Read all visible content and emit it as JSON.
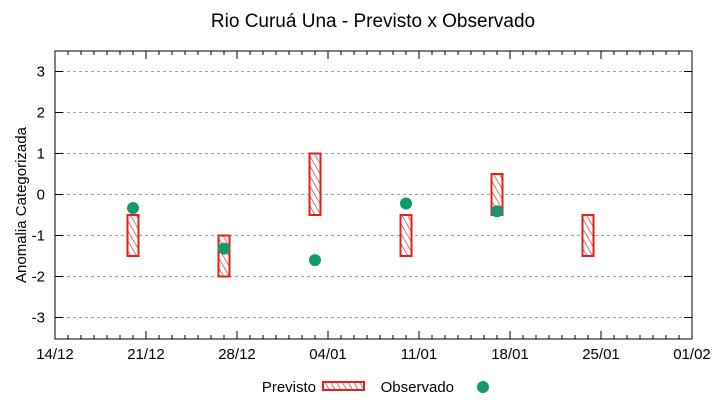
{
  "chart_data": {
    "type": "range-bar+scatter",
    "title": "Rio Curuá Una - Previsto x Observado",
    "xlabel": "",
    "ylabel": "Anomalia Categorizada",
    "ylim": [
      -3.5,
      3.5
    ],
    "y_ticks": [
      3,
      2,
      1,
      0,
      -1,
      -2,
      -3
    ],
    "x_tick_labels": [
      "14/12",
      "21/12",
      "28/12",
      "04/01",
      "11/01",
      "18/01",
      "25/01",
      "01/02"
    ],
    "x_range_days": [
      0,
      49
    ],
    "grid": "horizontal dotted at y ticks",
    "legend_position": "bottom center",
    "series": [
      {
        "name": "Previsto",
        "kind": "range-box (hatched)",
        "color": "#e0201a",
        "points": [
          {
            "date": "20/12",
            "day": 6,
            "low": -1.5,
            "high": -0.5
          },
          {
            "date": "27/12",
            "day": 13,
            "low": -2.0,
            "high": -1.0
          },
          {
            "date": "03/01",
            "day": 20,
            "low": -0.5,
            "high": 1.0
          },
          {
            "date": "10/01",
            "day": 27,
            "low": -1.5,
            "high": -0.5
          },
          {
            "date": "17/01",
            "day": 34,
            "low": -0.5,
            "high": 0.5
          },
          {
            "date": "24/01",
            "day": 41,
            "low": -1.5,
            "high": -0.5
          }
        ]
      },
      {
        "name": "Observado",
        "kind": "scatter (filled circle)",
        "color": "#109a6e",
        "points": [
          {
            "date": "20/12",
            "day": 6,
            "value": -0.33
          },
          {
            "date": "27/12",
            "day": 13,
            "value": -1.32
          },
          {
            "date": "03/01",
            "day": 20,
            "value": -1.6
          },
          {
            "date": "10/01",
            "day": 27,
            "value": -0.22
          },
          {
            "date": "17/01",
            "day": 34,
            "value": -0.41
          }
        ]
      }
    ]
  },
  "legend": {
    "previsto_label": "Previsto",
    "observado_label": "Observado"
  }
}
